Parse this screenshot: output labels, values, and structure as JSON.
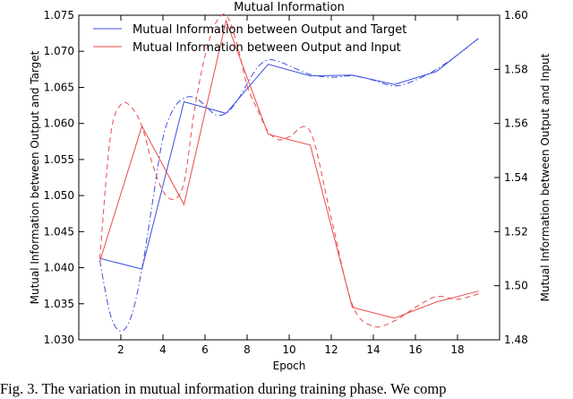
{
  "caption": "Fig. 3.  The variation in mutual information during training phase. We comp",
  "chart_data": {
    "type": "line",
    "title": "Mutual Information",
    "xlabel": "Epoch",
    "ylabel_left": "Mutual Information between Output and Target",
    "ylabel_right": "Mutual Information between Output and Input",
    "xlim": [
      0,
      20
    ],
    "ylim_left": [
      1.03,
      1.075
    ],
    "ylim_right": [
      1.48,
      1.6
    ],
    "x_ticks": [
      2,
      4,
      6,
      8,
      10,
      12,
      14,
      16,
      18
    ],
    "y_ticks_left": [
      "1.030",
      "1.035",
      "1.040",
      "1.045",
      "1.050",
      "1.055",
      "1.060",
      "1.065",
      "1.070",
      "1.075"
    ],
    "y_ticks_right": [
      "1.48",
      "1.50",
      "1.52",
      "1.54",
      "1.56",
      "1.58",
      "1.60"
    ],
    "grid": false,
    "legend_position": "top",
    "series": [
      {
        "name": "Mutual Information between Output and Target",
        "axis": "left",
        "color": "#3b4fe0",
        "style": "solid",
        "x": [
          1,
          3,
          5,
          7,
          9,
          11,
          13,
          15,
          17,
          19
        ],
        "y": [
          1.0413,
          1.0398,
          1.063,
          1.0614,
          1.0682,
          1.0666,
          1.0667,
          1.0654,
          1.0672,
          1.0718
        ]
      },
      {
        "name": "Mutual Information between Output and Input",
        "axis": "right",
        "color": "#e94b4b",
        "style": "solid",
        "x": [
          1,
          3,
          5,
          7,
          9,
          11,
          13,
          15,
          17,
          19
        ],
        "y": [
          1.509,
          1.559,
          1.53,
          1.598,
          1.556,
          1.552,
          1.492,
          1.488,
          1.494,
          1.498
        ]
      },
      {
        "name": "",
        "axis": "left",
        "color": "#3b4fe0",
        "style": "dashdot",
        "x": [
          1,
          1.5,
          2,
          2.5,
          3,
          3.5,
          4,
          4.5,
          5,
          5.5,
          6,
          6.5,
          7,
          7.5,
          8,
          8.5,
          9,
          9.5,
          10,
          11,
          12,
          13,
          14,
          15,
          16,
          17,
          18,
          19
        ],
        "y": [
          1.041,
          1.0335,
          1.0312,
          1.0333,
          1.0398,
          1.049,
          1.058,
          1.062,
          1.0635,
          1.0636,
          1.0625,
          1.0612,
          1.0614,
          1.063,
          1.0655,
          1.0678,
          1.0688,
          1.0686,
          1.068,
          1.0668,
          1.0664,
          1.0666,
          1.066,
          1.0652,
          1.066,
          1.0675,
          1.0695,
          1.0718
        ]
      },
      {
        "name": "",
        "axis": "right",
        "color": "#e94b4b",
        "style": "dashed",
        "x": [
          1,
          1.5,
          2,
          2.5,
          3,
          3.5,
          4,
          4.5,
          5,
          5.5,
          6,
          6.5,
          7,
          7.5,
          8,
          8.5,
          9,
          9.5,
          10,
          11,
          12,
          13,
          14,
          15,
          16,
          17,
          18,
          19
        ],
        "y": [
          1.51,
          1.555,
          1.567,
          1.566,
          1.559,
          1.545,
          1.535,
          1.532,
          1.538,
          1.565,
          1.585,
          1.597,
          1.6,
          1.59,
          1.574,
          1.565,
          1.557,
          1.554,
          1.555,
          1.557,
          1.525,
          1.493,
          1.485,
          1.487,
          1.492,
          1.496,
          1.495,
          1.497
        ]
      }
    ]
  }
}
